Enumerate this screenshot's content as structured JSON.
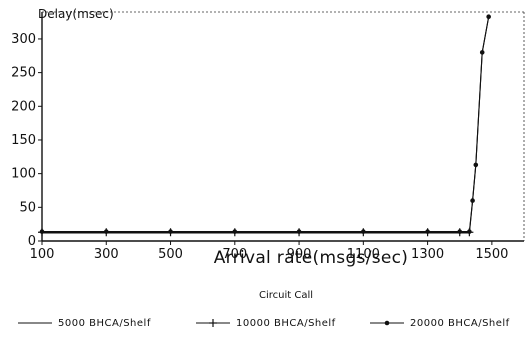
{
  "chart_data": {
    "type": "line",
    "title": "",
    "ylabel": "Delay(msec)",
    "xlabel": "Arrival rate(msgs/sec)",
    "xlim": [
      100,
      1600
    ],
    "ylim": [
      0,
      340
    ],
    "x_ticks": [
      100,
      300,
      500,
      700,
      900,
      1100,
      1300,
      1500
    ],
    "x_tick_labels": [
      "100",
      "300",
      "500",
      "700",
      "900",
      "1100",
      "1300",
      "1500"
    ],
    "y_ticks": [
      0,
      50,
      100,
      150,
      200,
      250,
      300
    ],
    "y_tick_labels": [
      "0",
      "50",
      "100",
      "150",
      "200",
      "250",
      "300"
    ],
    "grid": false,
    "legend_title": "Circuit Call",
    "legend_position": "bottom",
    "series": [
      {
        "name": "5000 BHCA/Shelf",
        "marker": "none",
        "x": [
          100,
          300,
          500,
          700,
          900,
          1100,
          1300,
          1400,
          1430,
          1440,
          1450,
          1470,
          1490
        ],
        "y": [
          12,
          12,
          12,
          12,
          12,
          12,
          12,
          12,
          12,
          60,
          113,
          280,
          333
        ]
      },
      {
        "name": "10000 BHCA/Shelf",
        "marker": "plus",
        "x": [
          100,
          300,
          500,
          700,
          900,
          1100,
          1300,
          1400,
          1430
        ],
        "y": [
          13,
          13,
          13,
          13,
          13,
          13,
          13,
          13,
          13
        ]
      },
      {
        "name": "20000 BHCA/Shelf",
        "marker": "dot",
        "x": [
          100,
          300,
          500,
          700,
          900,
          1100,
          1300,
          1400,
          1430,
          1440,
          1450,
          1470,
          1490
        ],
        "y": [
          14,
          14,
          14,
          14,
          14,
          14,
          14,
          14,
          14,
          60,
          113,
          280,
          333
        ]
      }
    ]
  }
}
